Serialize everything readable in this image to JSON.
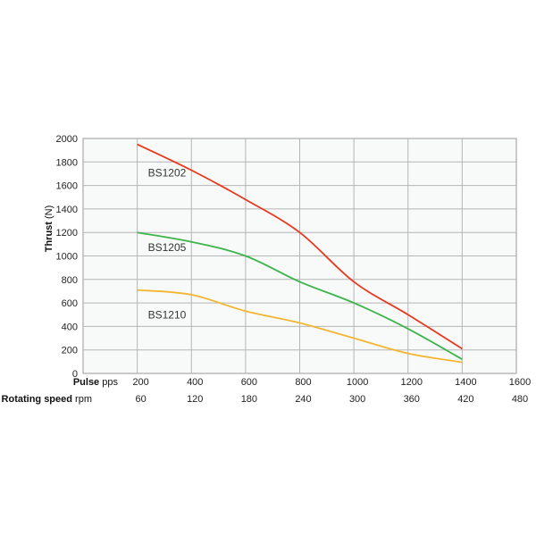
{
  "chart_data": {
    "type": "line",
    "x_axis_title_bold": "Pulse",
    "x_axis_unit": "pps",
    "x2_axis_title_bold": "Rotating speed",
    "x2_axis_unit": "rpm",
    "y_axis_title_bold": "Thrust",
    "y_axis_unit": "(N)",
    "xlim": [
      0,
      1600
    ],
    "ylim": [
      0,
      2000
    ],
    "x_ticks": [
      200,
      400,
      600,
      800,
      1000,
      1200,
      1400,
      1600
    ],
    "x2_ticks": [
      60,
      120,
      180,
      240,
      300,
      360,
      420,
      480
    ],
    "y_ticks": [
      0,
      200,
      400,
      600,
      800,
      1000,
      1200,
      1400,
      1600,
      1800,
      2000
    ],
    "grid": true,
    "series": [
      {
        "name": "BS1202",
        "color": "#e8381e",
        "x": [
          200,
          400,
          600,
          800,
          1000,
          1200,
          1400
        ],
        "y": [
          1950,
          1730,
          1480,
          1200,
          780,
          500,
          210
        ]
      },
      {
        "name": "BS1205",
        "color": "#3cb44b",
        "x": [
          200,
          400,
          600,
          800,
          1000,
          1200,
          1400
        ],
        "y": [
          1200,
          1120,
          1000,
          780,
          600,
          380,
          120
        ]
      },
      {
        "name": "BS1210",
        "color": "#f2b632",
        "x": [
          200,
          400,
          600,
          800,
          1000,
          1200,
          1400
        ],
        "y": [
          710,
          670,
          530,
          430,
          300,
          170,
          95
        ]
      }
    ]
  }
}
